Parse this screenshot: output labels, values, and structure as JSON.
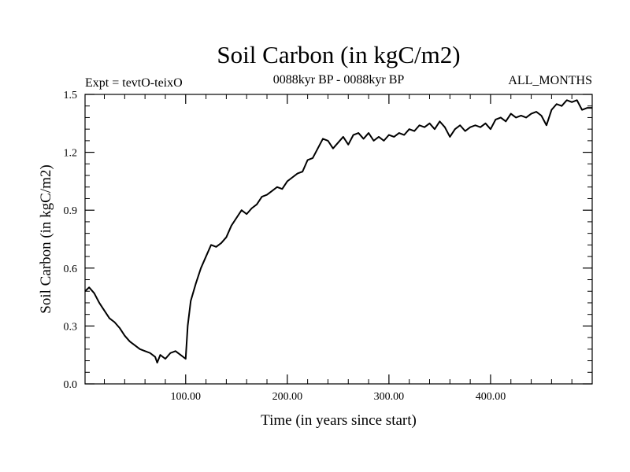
{
  "header": {
    "title": "Soil Carbon (in kgC/m2)",
    "experiment": "Expt = tevtO-teixO",
    "period": "0088kyr BP - 0088kyr BP",
    "months": "ALL_MONTHS"
  },
  "chart_data": {
    "type": "line",
    "title": "Soil Carbon (in kgC/m2)",
    "xlabel": "Time (in years since start)",
    "ylabel": "Soil Carbon (in kgC/m2)",
    "xlim": [
      1,
      500
    ],
    "ylim": [
      0,
      1.5
    ],
    "grid": false,
    "x_ticks": [
      100,
      200,
      300,
      400
    ],
    "x_tick_labels": [
      "100.00",
      "200.00",
      "300.00",
      "400.00"
    ],
    "y_ticks": [
      0,
      0.3,
      0.6,
      0.9,
      1.2,
      1.5
    ],
    "y_tick_labels": [
      "0.0",
      "0.3",
      "0.6",
      "0.9",
      "1.2",
      "1.5"
    ],
    "color": "#000000",
    "series": [
      {
        "x": [
          1,
          5,
          10,
          15,
          20,
          25,
          30,
          35,
          40,
          45,
          50,
          55,
          60,
          65,
          70,
          72,
          75,
          80,
          85,
          90,
          95,
          100,
          102,
          105,
          110,
          115,
          120,
          125,
          130,
          135,
          140,
          145,
          150,
          155,
          160,
          165,
          170,
          175,
          180,
          185,
          190,
          195,
          200,
          205,
          210,
          215,
          220,
          225,
          230,
          235,
          240,
          245,
          250,
          255,
          260,
          265,
          270,
          275,
          280,
          285,
          290,
          295,
          300,
          305,
          310,
          315,
          320,
          325,
          330,
          335,
          340,
          345,
          350,
          355,
          360,
          365,
          370,
          375,
          380,
          385,
          390,
          395,
          400,
          405,
          410,
          415,
          420,
          425,
          430,
          435,
          440,
          445,
          450,
          455,
          460,
          465,
          470,
          475,
          480,
          485,
          490,
          495,
          500
        ],
        "y": [
          0.48,
          0.5,
          0.47,
          0.42,
          0.38,
          0.34,
          0.32,
          0.29,
          0.25,
          0.22,
          0.2,
          0.18,
          0.17,
          0.16,
          0.14,
          0.11,
          0.15,
          0.13,
          0.16,
          0.17,
          0.15,
          0.13,
          0.3,
          0.43,
          0.52,
          0.6,
          0.66,
          0.72,
          0.71,
          0.73,
          0.76,
          0.82,
          0.86,
          0.9,
          0.88,
          0.91,
          0.93,
          0.97,
          0.98,
          1.0,
          1.02,
          1.01,
          1.05,
          1.07,
          1.09,
          1.1,
          1.16,
          1.17,
          1.22,
          1.27,
          1.26,
          1.22,
          1.25,
          1.28,
          1.24,
          1.29,
          1.3,
          1.27,
          1.3,
          1.26,
          1.28,
          1.26,
          1.29,
          1.28,
          1.3,
          1.29,
          1.32,
          1.31,
          1.34,
          1.33,
          1.35,
          1.32,
          1.36,
          1.33,
          1.28,
          1.32,
          1.34,
          1.31,
          1.33,
          1.34,
          1.33,
          1.35,
          1.32,
          1.37,
          1.38,
          1.36,
          1.4,
          1.38,
          1.39,
          1.38,
          1.4,
          1.41,
          1.39,
          1.34,
          1.42,
          1.45,
          1.44,
          1.47,
          1.46,
          1.47,
          1.42,
          1.43,
          1.43
        ]
      }
    ]
  }
}
